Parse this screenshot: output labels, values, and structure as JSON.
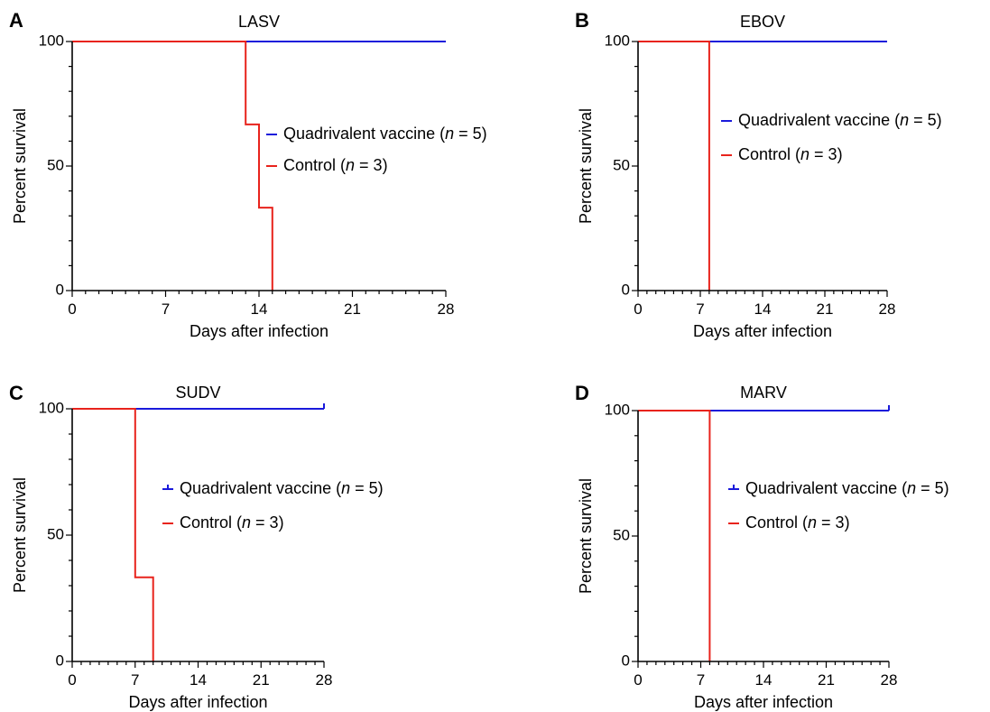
{
  "chart_data": [
    {
      "panel": "A",
      "type": "line",
      "title": "LASV",
      "xlabel": "Days after infection",
      "ylabel": "Percent survival",
      "xlim": [
        0,
        28
      ],
      "ylim": [
        0,
        100
      ],
      "xticks": [
        0,
        7,
        14,
        21,
        28
      ],
      "yticks": [
        0,
        50,
        100
      ],
      "x_minor_step": 1,
      "y_minor_step": 10,
      "legend_position": "center-right",
      "series": [
        {
          "name": "Quadrivalent vaccine (n = 5)",
          "color": "#1a1adb",
          "step": true,
          "censor_marks": false,
          "points": [
            [
              0,
              100
            ],
            [
              28,
              100
            ]
          ]
        },
        {
          "name": "Control (n = 3)",
          "color": "#e8231c",
          "step": true,
          "points": [
            [
              0,
              100
            ],
            [
              13,
              100
            ],
            [
              13,
              66.7
            ],
            [
              14,
              66.7
            ],
            [
              14,
              33.3
            ],
            [
              15,
              33.3
            ],
            [
              15,
              0
            ]
          ]
        }
      ]
    },
    {
      "panel": "B",
      "type": "line",
      "title": "EBOV",
      "xlabel": "Days after infection",
      "ylabel": "Percent survival",
      "xlim": [
        0,
        28
      ],
      "ylim": [
        0,
        100
      ],
      "xticks": [
        0,
        7,
        14,
        21,
        28
      ],
      "yticks": [
        0,
        50,
        100
      ],
      "x_minor_step": 1,
      "y_minor_step": 10,
      "legend_position": "center-right",
      "series": [
        {
          "name": "Quadrivalent vaccine (n = 5)",
          "color": "#1a1adb",
          "step": true,
          "censor_marks": false,
          "points": [
            [
              0,
              100
            ],
            [
              28,
              100
            ]
          ]
        },
        {
          "name": "Control (n = 3)",
          "color": "#e8231c",
          "step": true,
          "points": [
            [
              0,
              100
            ],
            [
              8,
              100
            ],
            [
              8,
              0
            ]
          ]
        }
      ]
    },
    {
      "panel": "C",
      "type": "line",
      "title": "SUDV",
      "xlabel": "Days after infection",
      "ylabel": "Percent survival",
      "xlim": [
        0,
        28
      ],
      "ylim": [
        0,
        100
      ],
      "xticks": [
        0,
        7,
        14,
        21,
        28
      ],
      "yticks": [
        0,
        50,
        100
      ],
      "x_minor_step": 1,
      "y_minor_step": 10,
      "legend_position": "center-right",
      "series": [
        {
          "name": "Quadrivalent vaccine (n = 5)",
          "color": "#1a1adb",
          "step": true,
          "censor_marks": true,
          "points": [
            [
              0,
              100
            ],
            [
              28,
              100
            ]
          ]
        },
        {
          "name": "Control (n = 3)",
          "color": "#e8231c",
          "step": true,
          "points": [
            [
              0,
              100
            ],
            [
              7,
              100
            ],
            [
              7,
              33.3
            ],
            [
              9,
              33.3
            ],
            [
              9,
              0
            ]
          ]
        }
      ]
    },
    {
      "panel": "D",
      "type": "line",
      "title": "MARV",
      "xlabel": "Days after infection",
      "ylabel": "Percent survival",
      "xlim": [
        0,
        28
      ],
      "ylim": [
        0,
        100
      ],
      "xticks": [
        0,
        7,
        14,
        21,
        28
      ],
      "yticks": [
        0,
        50,
        100
      ],
      "x_minor_step": 1,
      "y_minor_step": 10,
      "legend_position": "center-right",
      "series": [
        {
          "name": "Quadrivalent vaccine (n = 5)",
          "color": "#1a1adb",
          "step": true,
          "censor_marks": true,
          "points": [
            [
              0,
              100
            ],
            [
              28,
              100
            ]
          ]
        },
        {
          "name": "Control (n = 3)",
          "color": "#e8231c",
          "step": true,
          "points": [
            [
              0,
              100
            ],
            [
              8,
              100
            ],
            [
              8,
              0
            ]
          ]
        }
      ]
    }
  ]
}
